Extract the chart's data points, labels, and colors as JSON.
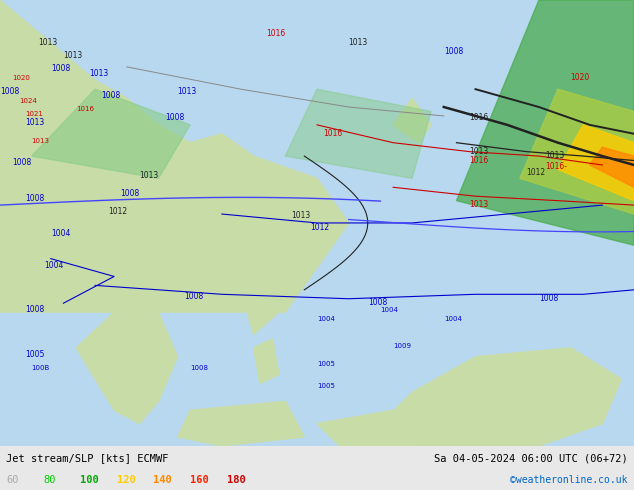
{
  "title_left": "Jet stream/SLP [kts] ECMWF",
  "title_right": "Sa 04-05-2024 06:00 UTC (06+72)",
  "credit": "©weatheronline.co.uk",
  "legend_labels": [
    "60",
    "80",
    "100",
    "120",
    "140",
    "160",
    "180"
  ],
  "legend_colors": [
    "#aaaaaa",
    "#00cc00",
    "#00aa00",
    "#ffcc00",
    "#ff8800",
    "#ff2200",
    "#cc0000"
  ],
  "bg_color": "#e8e8e8",
  "fig_width": 6.34,
  "fig_height": 4.9,
  "dpi": 100,
  "map_bg": "#f0f0f0",
  "bottom_bar_color": "#d8d8d8"
}
